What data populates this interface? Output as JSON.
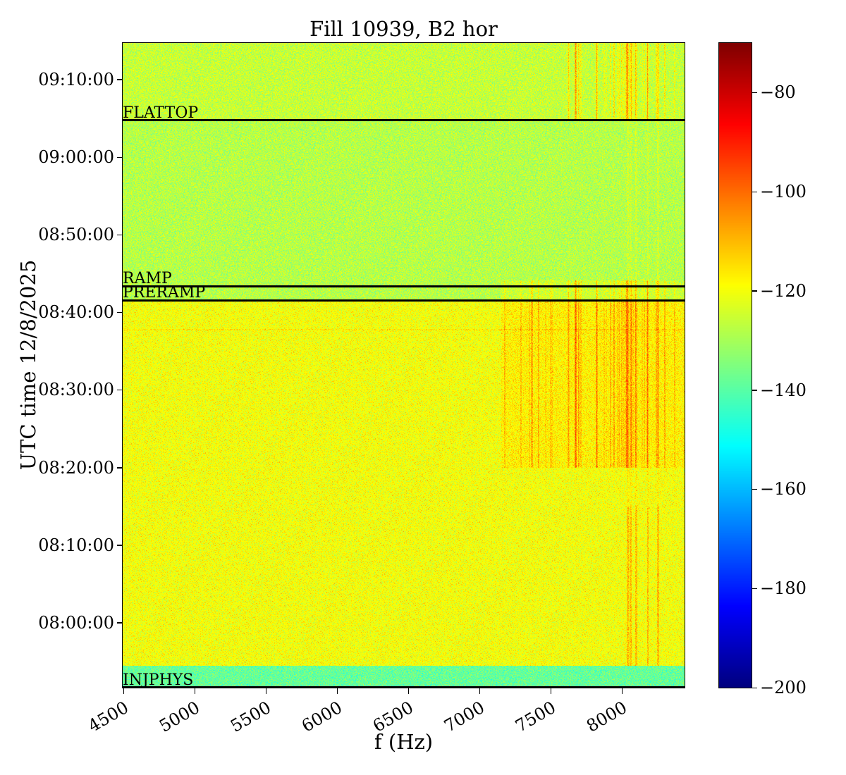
{
  "chart_data": {
    "type": "heatmap",
    "title": "Fill 10939, B2 hor",
    "xlabel": "f (Hz)",
    "ylabel": "UTC time 12/8/2025",
    "xlim": [
      4495,
      8440
    ],
    "ylim_seconds": [
      28298,
      33283
    ],
    "xticks": [
      4500,
      5000,
      5500,
      6000,
      6500,
      7000,
      7500,
      8000
    ],
    "xtick_labels": [
      "4500",
      "5000",
      "5500",
      "6000",
      "6500",
      "7000",
      "7500",
      "8000"
    ],
    "yticks_seconds": [
      28800,
      29400,
      30000,
      30600,
      31200,
      31800,
      32400,
      33000
    ],
    "ytick_labels": [
      "08:00:00",
      "08:10:00",
      "08:20:00",
      "08:30:00",
      "08:40:00",
      "08:50:00",
      "09:00:00",
      "09:10:00"
    ],
    "markers": [
      {
        "label": "FLATTOP",
        "time_seconds": 32684
      },
      {
        "label": "RAMP",
        "time_seconds": 31402
      },
      {
        "label": "PRERAMP",
        "time_seconds": 31293
      },
      {
        "label": "INJPHYS",
        "time_seconds": 28300
      }
    ],
    "colorbar": {
      "colormap": "jet",
      "range": [
        -200,
        -70
      ],
      "ticks": [
        -80,
        -100,
        -120,
        -140,
        -160,
        -180,
        -200
      ],
      "tick_labels": [
        "−80",
        "−100",
        "−120",
        "−140",
        "−160",
        "−180",
        "−200"
      ]
    },
    "levels_db": {
      "before_injphys": -138,
      "injection": -120,
      "ramp_to_flattop": -128,
      "flattop": -126
    }
  }
}
